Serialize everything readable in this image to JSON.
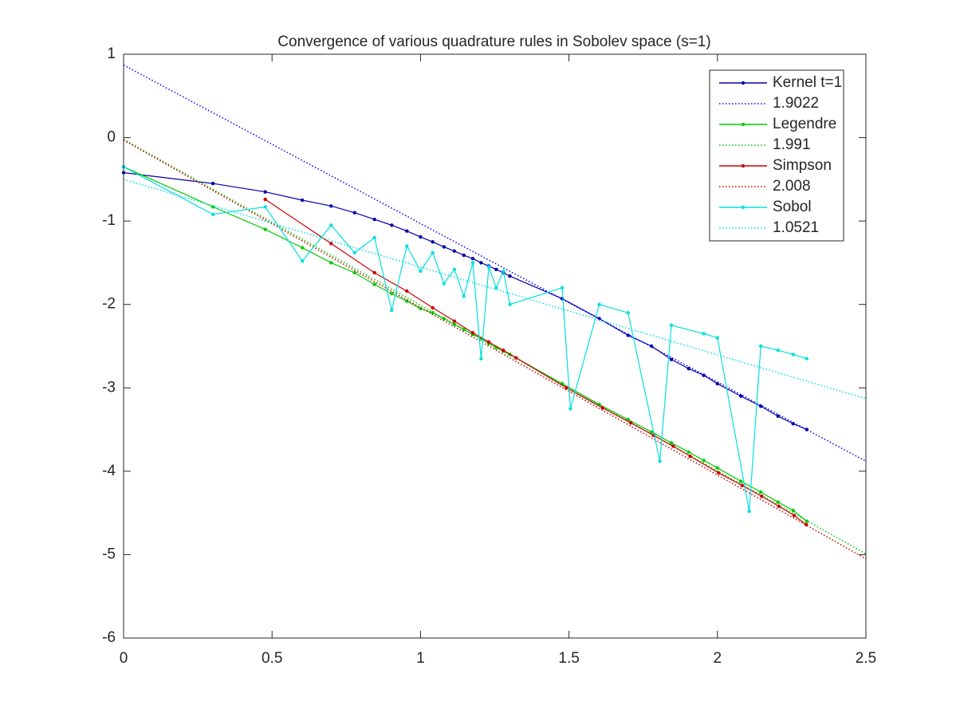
{
  "chart_data": {
    "type": "line",
    "title": "Convergence of various quadrature rules in Sobolev space (s=1)",
    "xlim": [
      0,
      2.5
    ],
    "ylim": [
      -6,
      1
    ],
    "xticks": [
      0,
      0.5,
      1,
      1.5,
      2,
      2.5
    ],
    "yticks": [
      -6,
      -5,
      -4,
      -3,
      -2,
      -1,
      0,
      1
    ],
    "legend": "top-right",
    "series": [
      {
        "name": "Kernel t=1",
        "color": "#0000a8",
        "style": "solid",
        "x": [
          0,
          0.301,
          0.477,
          0.602,
          0.699,
          0.778,
          0.845,
          0.903,
          0.954,
          1.0,
          1.041,
          1.079,
          1.114,
          1.146,
          1.176,
          1.204,
          1.23,
          1.255,
          1.279,
          1.301,
          1.477,
          1.602,
          1.699,
          1.778,
          1.845,
          1.903,
          1.954,
          2.0,
          2.079,
          2.146,
          2.204,
          2.255,
          2.301
        ],
        "values": [
          -0.42,
          -0.55,
          -0.65,
          -0.75,
          -0.82,
          -0.9,
          -0.98,
          -1.05,
          -1.12,
          -1.19,
          -1.25,
          -1.31,
          -1.36,
          -1.41,
          -1.45,
          -1.5,
          -1.54,
          -1.58,
          -1.62,
          -1.66,
          -1.93,
          -2.17,
          -2.37,
          -2.5,
          -2.66,
          -2.77,
          -2.85,
          -2.95,
          -3.1,
          -3.22,
          -3.34,
          -3.43,
          -3.5
        ]
      },
      {
        "name": "1.9022",
        "color": "#0000ff",
        "style": "dotted",
        "x": [
          0,
          2.5
        ],
        "values": [
          0.87,
          -3.88
        ]
      },
      {
        "name": "Legendre",
        "color": "#00cc00",
        "style": "solid",
        "x": [
          0,
          0.301,
          0.477,
          0.602,
          0.699,
          0.778,
          0.845,
          0.903,
          0.954,
          1.0,
          1.041,
          1.079,
          1.114,
          1.146,
          1.176,
          1.204,
          1.23,
          1.255,
          1.279,
          1.301,
          1.477,
          1.602,
          1.699,
          1.778,
          1.845,
          1.903,
          1.954,
          2.0,
          2.079,
          2.146,
          2.204,
          2.255,
          2.301
        ],
        "values": [
          -0.35,
          -0.83,
          -1.1,
          -1.32,
          -1.5,
          -1.62,
          -1.76,
          -1.87,
          -1.96,
          -2.05,
          -2.1,
          -2.17,
          -2.24,
          -2.3,
          -2.36,
          -2.41,
          -2.47,
          -2.52,
          -2.56,
          -2.6,
          -2.95,
          -3.2,
          -3.38,
          -3.53,
          -3.66,
          -3.77,
          -3.87,
          -3.96,
          -4.12,
          -4.25,
          -4.37,
          -4.47,
          -4.6
        ]
      },
      {
        "name": "1.991",
        "color": "#00cc00",
        "style": "dotted",
        "x": [
          0,
          2.5
        ],
        "values": [
          -0.02,
          -4.99
        ]
      },
      {
        "name": "Simpson",
        "color": "#cc0000",
        "style": "solid",
        "x": [
          0.477,
          0.699,
          0.845,
          0.954,
          1.041,
          1.114,
          1.176,
          1.23,
          1.279,
          1.322,
          1.491,
          1.613,
          1.708,
          1.785,
          1.851,
          1.908,
          2.004,
          2.083,
          2.149,
          2.207,
          2.258,
          2.299
        ],
        "values": [
          -0.74,
          -1.27,
          -1.62,
          -1.84,
          -2.04,
          -2.2,
          -2.34,
          -2.45,
          -2.55,
          -2.64,
          -3.0,
          -3.24,
          -3.42,
          -3.57,
          -3.7,
          -3.82,
          -4.02,
          -4.17,
          -4.3,
          -4.42,
          -4.53,
          -4.64
        ]
      },
      {
        "name": "2.008",
        "color": "#cc0000",
        "style": "dotted",
        "x": [
          0,
          2.5
        ],
        "values": [
          -0.03,
          -5.05
        ]
      },
      {
        "name": "Sobol",
        "color": "#00e0e0",
        "style": "solid",
        "x": [
          0,
          0.301,
          0.477,
          0.602,
          0.699,
          0.778,
          0.845,
          0.903,
          0.954,
          1.0,
          1.041,
          1.079,
          1.114,
          1.146,
          1.176,
          1.204,
          1.23,
          1.255,
          1.279,
          1.301,
          1.477,
          1.505,
          1.602,
          1.699,
          1.806,
          1.845,
          1.954,
          2.0,
          2.107,
          2.146,
          2.204,
          2.255,
          2.301
        ],
        "values": [
          -0.35,
          -0.92,
          -0.83,
          -1.48,
          -1.05,
          -1.38,
          -1.2,
          -2.07,
          -1.3,
          -1.6,
          -1.38,
          -1.75,
          -1.58,
          -1.9,
          -1.5,
          -2.65,
          -1.55,
          -1.8,
          -1.6,
          -2.0,
          -1.8,
          -3.25,
          -2.0,
          -2.1,
          -3.88,
          -2.25,
          -2.35,
          -2.4,
          -4.48,
          -2.5,
          -2.55,
          -2.6,
          -2.65
        ]
      },
      {
        "name": "1.0521",
        "color": "#00e0e0",
        "style": "dotted",
        "x": [
          0,
          2.5
        ],
        "values": [
          -0.5,
          -3.13
        ]
      }
    ]
  }
}
